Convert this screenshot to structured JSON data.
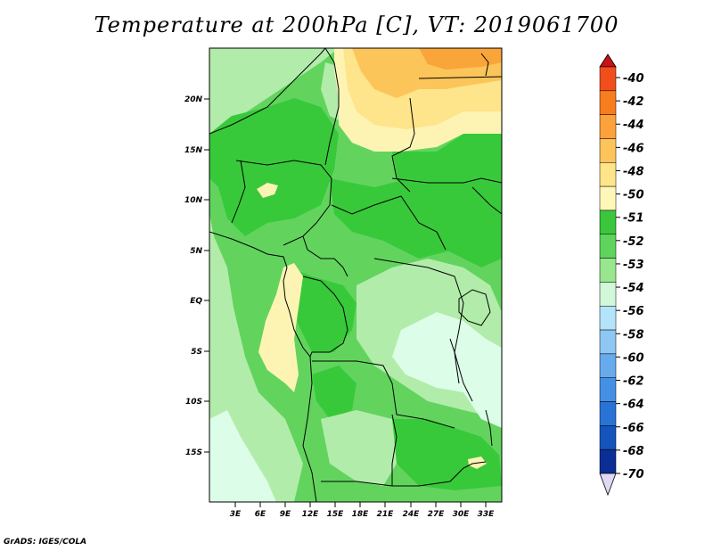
{
  "title": "Temperature at 200hPa [C], VT: 2019061700",
  "footer": "GrADS: IGES/COLA",
  "map": {
    "lat_labels": [
      "20N",
      "15N",
      "10N",
      "5N",
      "EQ",
      "5S",
      "10S",
      "15S"
    ],
    "lon_labels": [
      "3E",
      "6E",
      "9E",
      "12E",
      "15E",
      "18E",
      "21E",
      "24E",
      "27E",
      "30E",
      "33E"
    ]
  },
  "colorbar": {
    "labels": [
      "-40",
      "-42",
      "-44",
      "-46",
      "-48",
      "-50",
      "-51",
      "-52",
      "-53",
      "-54",
      "-56",
      "-58",
      "-60",
      "-62",
      "-64",
      "-66",
      "-68",
      "-70"
    ],
    "colors": [
      "#e8131a",
      "#f24e1c",
      "#f87d1f",
      "#fba23a",
      "#fdc45c",
      "#fee48a",
      "#fff7b7",
      "#3bc63b",
      "#5fd45d",
      "#98e68d",
      "#d1f8d9",
      "#b4e4f9",
      "#8ec7f3",
      "#68abec",
      "#4590e4",
      "#2a73d6",
      "#1654bd",
      "#0b2e95",
      "#05107a"
    ],
    "top_color": "#c81216",
    "bottom_color": "#e0d8f5"
  },
  "fields": {
    "ocean_color": "#b2ecaa",
    "land_base_color": "#62d45e",
    "colors": {
      "dark_green": "#38c93a",
      "mid_green": "#62d45e",
      "light_green": "#b2ecaa",
      "pale_cyan": "#dcfde8",
      "pale_yellow": "#fdf4b4",
      "yellow": "#fee48a",
      "orange": "#fcc55a",
      "dark_orange": "#f9a53a"
    }
  }
}
